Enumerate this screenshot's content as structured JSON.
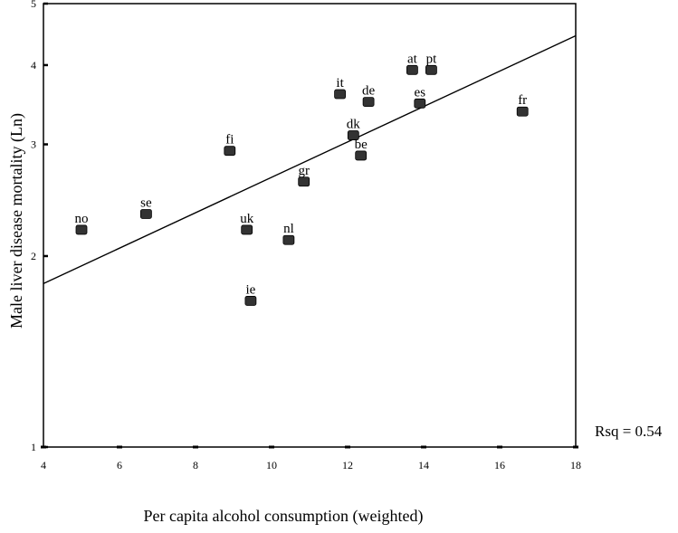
{
  "chart_data": {
    "type": "scatter",
    "xlabel": "Per capita alcohol consumption (weighted)",
    "ylabel": "Male liver disease mortality (Ln)",
    "xlim": [
      4,
      18
    ],
    "ylim": [
      1,
      5
    ],
    "y_scale": "log",
    "x_ticks": [
      4,
      6,
      8,
      10,
      12,
      14,
      16,
      18
    ],
    "y_ticks": [
      1,
      2,
      3,
      4,
      5
    ],
    "grid": false,
    "points": [
      {
        "label": "no",
        "x": 5.0,
        "y": 2.2
      },
      {
        "label": "se",
        "x": 6.7,
        "y": 2.33
      },
      {
        "label": "fi",
        "x": 8.9,
        "y": 2.93
      },
      {
        "label": "uk",
        "x": 9.35,
        "y": 2.2
      },
      {
        "label": "ie",
        "x": 9.45,
        "y": 1.7
      },
      {
        "label": "nl",
        "x": 10.45,
        "y": 2.12
      },
      {
        "label": "gr",
        "x": 10.85,
        "y": 2.62
      },
      {
        "label": "it",
        "x": 11.8,
        "y": 3.6
      },
      {
        "label": "dk",
        "x": 12.15,
        "y": 3.1
      },
      {
        "label": "be",
        "x": 12.35,
        "y": 2.88
      },
      {
        "label": "de",
        "x": 12.55,
        "y": 3.5
      },
      {
        "label": "at",
        "x": 13.7,
        "y": 3.93
      },
      {
        "label": "es",
        "x": 13.9,
        "y": 3.48
      },
      {
        "label": "pt",
        "x": 14.2,
        "y": 3.93
      },
      {
        "label": "fr",
        "x": 16.6,
        "y": 3.38
      }
    ],
    "fit_line": {
      "x": [
        4,
        18
      ],
      "y": [
        1.81,
        4.45
      ]
    },
    "annotation": "Rsq = 0.54",
    "marker_color": "#333333",
    "line_color": "#000000"
  }
}
